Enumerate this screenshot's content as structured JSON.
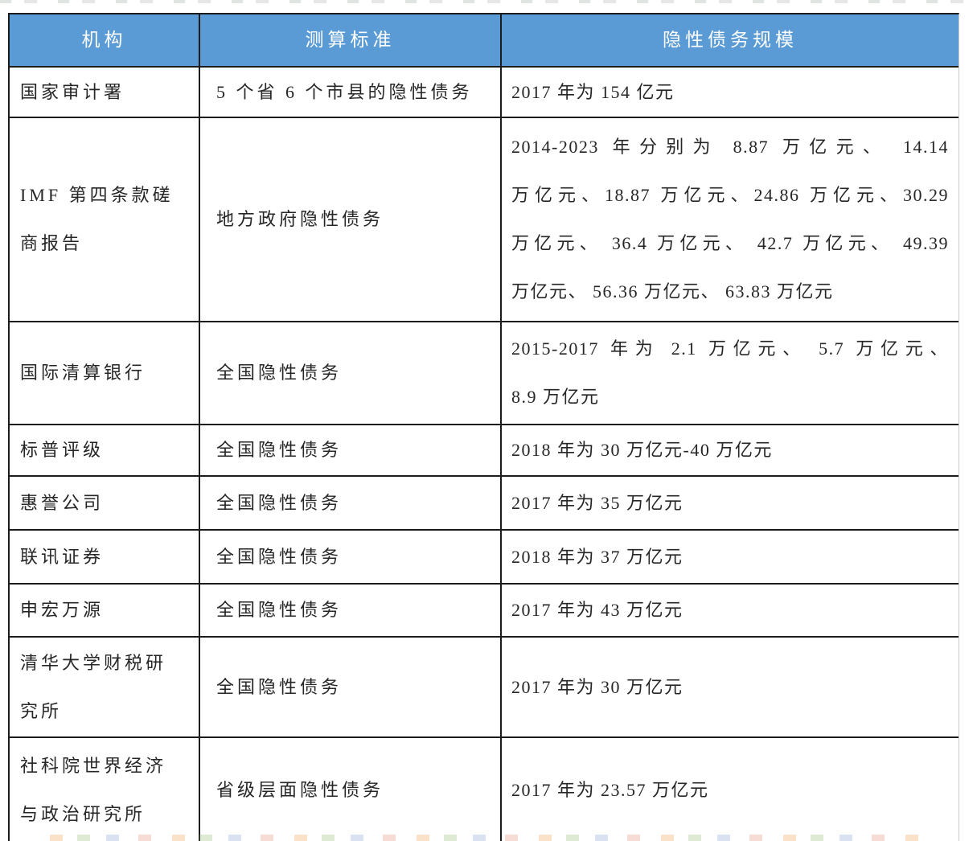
{
  "table": {
    "columns": [
      "机构",
      "测算标准",
      "隐性债务规模"
    ],
    "rows": [
      {
        "org": [
          "国家审计署"
        ],
        "standard": [
          "5 个省 6 个市县的隐性债务"
        ],
        "scale": [
          "2017 年为 154 亿元"
        ],
        "justify_scale": false
      },
      {
        "org": [
          "IMF 第四条款磋",
          "商报告"
        ],
        "standard": [
          "地方政府隐性债务"
        ],
        "scale": [
          "2014-2023 年分别为 8.87 万亿元、 14.14",
          "万亿元、18.87 万亿元、24.86 万亿元、30.29",
          "万亿元、 36.4 万亿元、 42.7 万亿元、 49.39",
          "万亿元、 56.36 万亿元、 63.83 万亿元"
        ],
        "justify_scale": true
      },
      {
        "org": [
          "国际清算银行"
        ],
        "standard": [
          "全国隐性债务"
        ],
        "scale": [
          "2015-2017 年为 2.1 万亿元、 5.7 万亿元、",
          "8.9 万亿元"
        ],
        "justify_scale": true
      },
      {
        "org": [
          "标普评级"
        ],
        "standard": [
          "全国隐性债务"
        ],
        "scale": [
          "2018 年为 30 万亿元-40 万亿元"
        ],
        "justify_scale": false
      },
      {
        "org": [
          "惠誉公司"
        ],
        "standard": [
          "全国隐性债务"
        ],
        "scale": [
          "2017 年为 35 万亿元"
        ],
        "justify_scale": false
      },
      {
        "org": [
          "联讯证券"
        ],
        "standard": [
          "全国隐性债务"
        ],
        "scale": [
          "2018 年为 37 万亿元"
        ],
        "justify_scale": false
      },
      {
        "org": [
          "申宏万源"
        ],
        "standard": [
          "全国隐性债务"
        ],
        "scale": [
          "2017 年为 43 万亿元"
        ],
        "justify_scale": false
      },
      {
        "org": [
          "清华大学财税研",
          "究所"
        ],
        "standard": [
          "全国隐性债务"
        ],
        "scale": [
          "2017 年为 30 万亿元"
        ],
        "justify_scale": false
      },
      {
        "org": [
          "社科院世界经济",
          "与政治研究所"
        ],
        "standard": [
          "省级层面隐性债务"
        ],
        "scale": [
          "2017 年为 23.57 万亿元"
        ],
        "justify_scale": false
      }
    ]
  },
  "colors": {
    "header_bg": "#5B9BD5",
    "header_text": "#FFFFFF",
    "body_text": "#262626",
    "grid_line": "#1C1C1C"
  }
}
